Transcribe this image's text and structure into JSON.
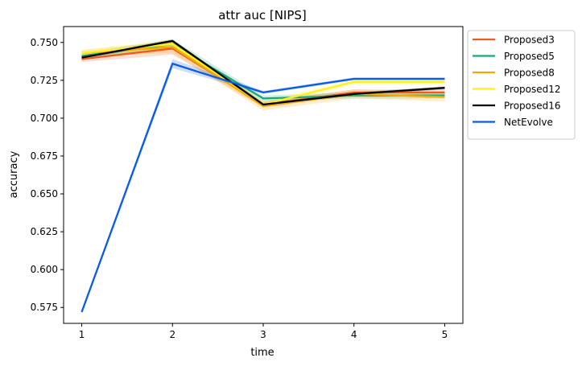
{
  "chart_data": {
    "type": "line",
    "title": "attr auc [NIPS]",
    "xlabel": "time",
    "ylabel": "accuracy",
    "x": [
      1,
      2,
      3,
      4,
      5
    ],
    "xlim": [
      0.8,
      5.2
    ],
    "ylim": [
      0.5645,
      0.7605
    ],
    "yticks": [
      0.575,
      0.6,
      0.625,
      0.65,
      0.675,
      0.7,
      0.725,
      0.75
    ],
    "ytick_labels": [
      "0.575",
      "0.600",
      "0.625",
      "0.650",
      "0.675",
      "0.700",
      "0.725",
      "0.750"
    ],
    "xtick_labels": [
      "1",
      "2",
      "3",
      "4",
      "5"
    ],
    "grid": false,
    "legend_position": "outside-right-top",
    "series": [
      {
        "name": "Proposed3",
        "color": "#f05a1a",
        "values": [
          0.739,
          0.746,
          0.709,
          0.717,
          0.717
        ],
        "band": [
          0.002,
          0.004,
          0.002,
          0.002,
          0.002
        ]
      },
      {
        "name": "Proposed5",
        "color": "#16aa7a",
        "values": [
          0.741,
          0.749,
          0.713,
          0.715,
          0.715
        ],
        "band": [
          0.002,
          0.003,
          0.002,
          0.002,
          0.002
        ]
      },
      {
        "name": "Proposed8",
        "color": "#f5a800",
        "values": [
          0.743,
          0.747,
          0.708,
          0.716,
          0.714
        ],
        "band": [
          0.002,
          0.004,
          0.003,
          0.003,
          0.003
        ]
      },
      {
        "name": "Proposed12",
        "color": "#fff01a",
        "values": [
          0.743,
          0.749,
          0.709,
          0.724,
          0.724
        ],
        "band": [
          0.002,
          0.003,
          0.002,
          0.002,
          0.002
        ]
      },
      {
        "name": "Proposed16",
        "color": "#000000",
        "values": [
          0.74,
          0.751,
          0.709,
          0.716,
          0.72
        ],
        "band": [
          0.001,
          0.001,
          0.001,
          0.001,
          0.001
        ]
      },
      {
        "name": "NetEvolve",
        "color": "#0a5be8",
        "values": [
          0.572,
          0.736,
          0.717,
          0.726,
          0.726
        ],
        "band": [
          0.001,
          0.003,
          0.001,
          0.001,
          0.001
        ]
      }
    ]
  }
}
